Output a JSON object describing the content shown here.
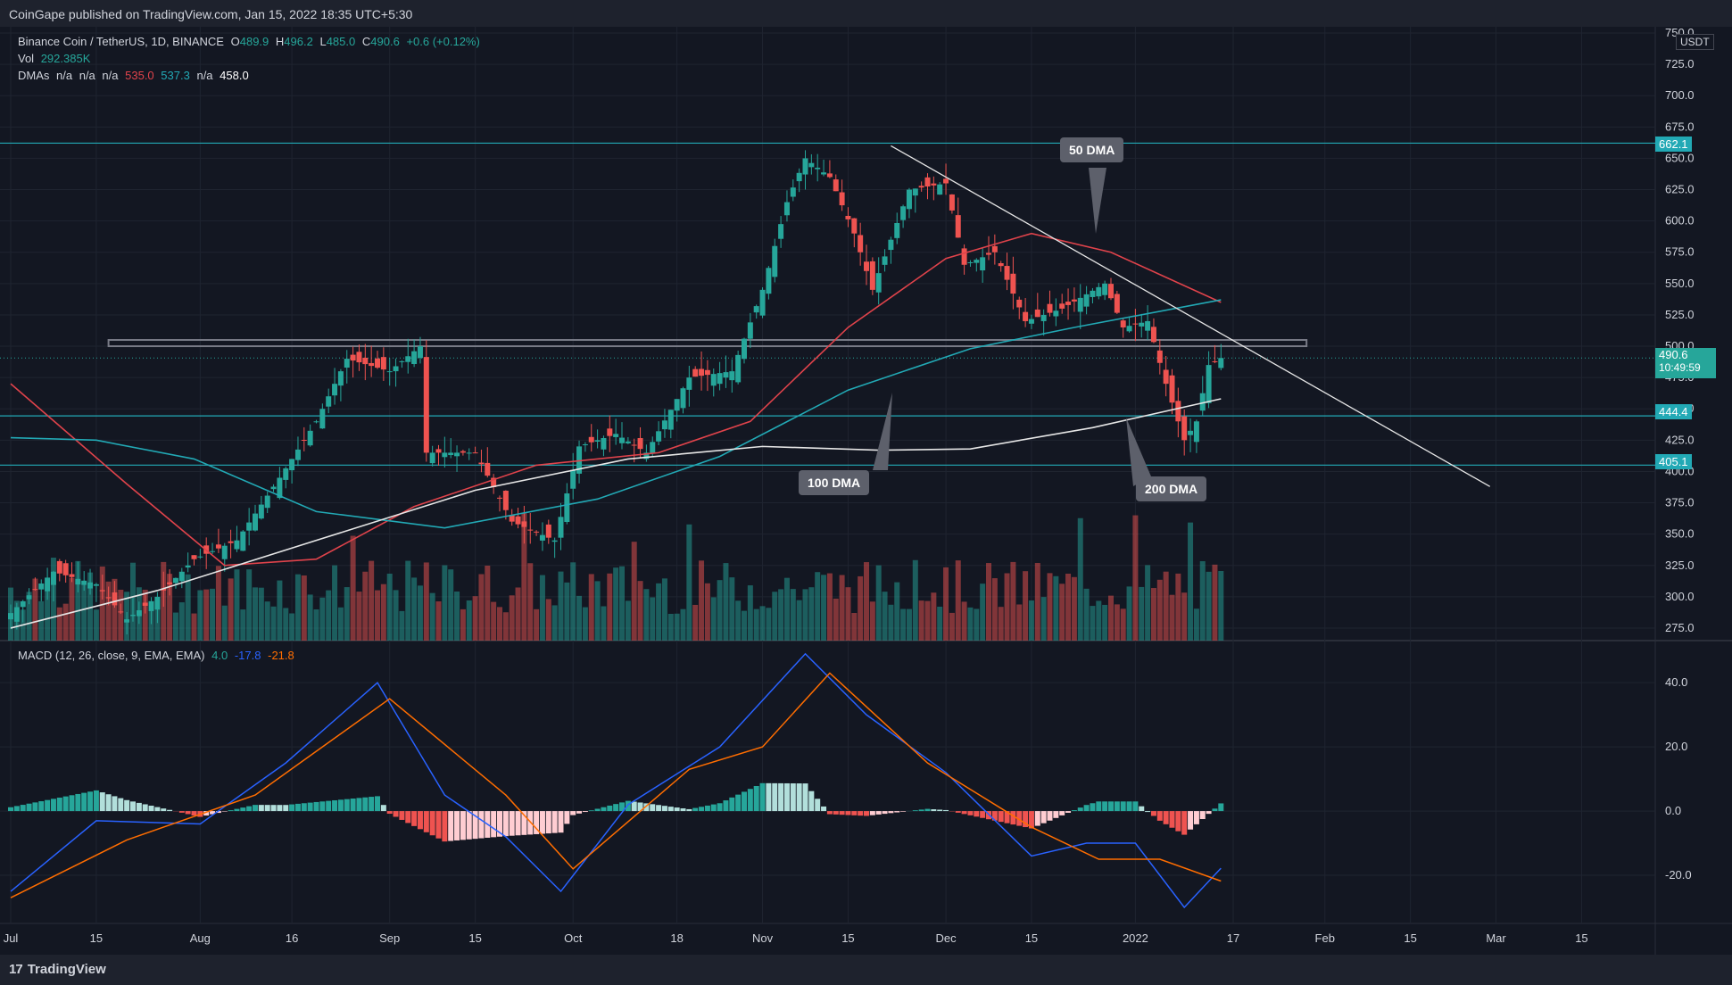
{
  "header": {
    "published": "CoinGape published on TradingView.com, Jan 15, 2022 18:35 UTC+5:30"
  },
  "legend": {
    "symbol": "Binance Coin / TetherUS, 1D, BINANCE",
    "o_label": "O",
    "o": "489.9",
    "h_label": "H",
    "h": "496.2",
    "l_label": "L",
    "l": "485.0",
    "c_label": "C",
    "c": "490.6",
    "change": "+0.6 (+0.12%)",
    "vol_label": "Vol",
    "vol": "292.385K",
    "dma_label": "DMAs",
    "dma_na1": "n/a",
    "dma_na2": "n/a",
    "dma_na3": "n/a",
    "dma_50": "535.0",
    "dma_100": "537.3",
    "dma_na4": "n/a",
    "dma_200": "458.0"
  },
  "macd_legend": {
    "label": "MACD (12, 26, close, 9, EMA, EMA)",
    "hist": "4.0",
    "macd": "-17.8",
    "signal": "-21.8"
  },
  "currency": "USDT",
  "price_axis": [
    "750.0",
    "725.0",
    "700.0",
    "675.0",
    "650.0",
    "625.0",
    "600.0",
    "575.0",
    "550.0",
    "525.0",
    "500.0",
    "475.0",
    "450.0",
    "425.0",
    "400.0",
    "375.0",
    "350.0",
    "325.0",
    "300.0",
    "275.0"
  ],
  "price_badges": {
    "resistance": "662.1",
    "current": "490.6",
    "countdown": "10:49:59",
    "support1": "444.4",
    "support2": "405.1"
  },
  "macd_axis": [
    "40.0",
    "20.0",
    "0.0",
    "-20.0"
  ],
  "time_axis": [
    "Jul",
    "15",
    "Aug",
    "16",
    "Sep",
    "15",
    "Oct",
    "18",
    "Nov",
    "15",
    "Dec",
    "15",
    "2022",
    "17",
    "Feb",
    "15",
    "Mar",
    "15"
  ],
  "callouts": {
    "dma50": "50 DMA",
    "dma100": "100 DMA",
    "dma200": "200 DMA"
  },
  "footer": {
    "brand": "TradingView",
    "mark": "17"
  },
  "colors": {
    "bg": "#131722",
    "up": "#26a69a",
    "down": "#ef5350",
    "dma50": "#e0434b",
    "dma100": "#22a9b5",
    "dma200": "#e6e6e6",
    "hline": "#22a9b5",
    "macd": "#2962ff",
    "signal": "#ff6d00"
  },
  "chart_data": {
    "type": "candlestick",
    "symbol": "BNB/USDT",
    "interval": "1D",
    "x_range": [
      "2021-07-01",
      "2022-03-15"
    ],
    "ylim": [
      265,
      755
    ],
    "horizontal_levels": [
      662.1,
      444.4,
      405.1
    ],
    "resistance_zone": [
      500,
      505
    ],
    "trendline": [
      {
        "x": "2021-11-22",
        "y": 660
      },
      {
        "x": "2022-02-28",
        "y": 388
      }
    ],
    "ohlc_close_path": [
      {
        "x": "2021-07-01",
        "y": 287
      },
      {
        "x": "2021-07-08",
        "y": 320
      },
      {
        "x": "2021-07-15",
        "y": 310
      },
      {
        "x": "2021-07-20",
        "y": 282
      },
      {
        "x": "2021-07-25",
        "y": 300
      },
      {
        "x": "2021-07-31",
        "y": 330
      },
      {
        "x": "2021-08-07",
        "y": 345
      },
      {
        "x": "2021-08-14",
        "y": 395
      },
      {
        "x": "2021-08-20",
        "y": 440
      },
      {
        "x": "2021-08-25",
        "y": 490
      },
      {
        "x": "2021-09-01",
        "y": 480
      },
      {
        "x": "2021-09-06",
        "y": 500
      },
      {
        "x": "2021-09-07",
        "y": 415
      },
      {
        "x": "2021-09-15",
        "y": 415
      },
      {
        "x": "2021-09-21",
        "y": 360
      },
      {
        "x": "2021-09-28",
        "y": 345
      },
      {
        "x": "2021-10-02",
        "y": 420
      },
      {
        "x": "2021-10-08",
        "y": 430
      },
      {
        "x": "2021-10-13",
        "y": 415
      },
      {
        "x": "2021-10-20",
        "y": 475
      },
      {
        "x": "2021-10-27",
        "y": 480
      },
      {
        "x": "2021-11-01",
        "y": 545
      },
      {
        "x": "2021-11-05",
        "y": 615
      },
      {
        "x": "2021-11-08",
        "y": 650
      },
      {
        "x": "2021-11-12",
        "y": 635
      },
      {
        "x": "2021-11-16",
        "y": 590
      },
      {
        "x": "2021-11-19",
        "y": 545
      },
      {
        "x": "2021-11-25",
        "y": 625
      },
      {
        "x": "2021-12-01",
        "y": 630
      },
      {
        "x": "2021-12-04",
        "y": 565
      },
      {
        "x": "2021-12-09",
        "y": 575
      },
      {
        "x": "2021-12-14",
        "y": 520
      },
      {
        "x": "2021-12-20",
        "y": 530
      },
      {
        "x": "2021-12-27",
        "y": 550
      },
      {
        "x": "2021-12-30",
        "y": 515
      },
      {
        "x": "2022-01-03",
        "y": 520
      },
      {
        "x": "2022-01-06",
        "y": 470
      },
      {
        "x": "2022-01-09",
        "y": 425
      },
      {
        "x": "2022-01-11",
        "y": 440
      },
      {
        "x": "2022-01-13",
        "y": 485
      },
      {
        "x": "2022-01-15",
        "y": 490.6
      }
    ],
    "series": [
      {
        "name": "DMA 50",
        "points": [
          {
            "x": "2021-07-01",
            "y": 470
          },
          {
            "x": "2021-07-20",
            "y": 390
          },
          {
            "x": "2021-08-05",
            "y": 325
          },
          {
            "x": "2021-08-20",
            "y": 330
          },
          {
            "x": "2021-09-05",
            "y": 372
          },
          {
            "x": "2021-09-25",
            "y": 405
          },
          {
            "x": "2021-10-15",
            "y": 415
          },
          {
            "x": "2021-10-30",
            "y": 440
          },
          {
            "x": "2021-11-15",
            "y": 515
          },
          {
            "x": "2021-12-01",
            "y": 570
          },
          {
            "x": "2021-12-15",
            "y": 590
          },
          {
            "x": "2021-12-28",
            "y": 575
          },
          {
            "x": "2022-01-15",
            "y": 535
          }
        ]
      },
      {
        "name": "DMA 100",
        "points": [
          {
            "x": "2021-07-01",
            "y": 427
          },
          {
            "x": "2021-07-15",
            "y": 425
          },
          {
            "x": "2021-07-31",
            "y": 410
          },
          {
            "x": "2021-08-20",
            "y": 368
          },
          {
            "x": "2021-09-10",
            "y": 355
          },
          {
            "x": "2021-10-05",
            "y": 378
          },
          {
            "x": "2021-10-25",
            "y": 412
          },
          {
            "x": "2021-11-15",
            "y": 465
          },
          {
            "x": "2021-12-05",
            "y": 498
          },
          {
            "x": "2021-12-22",
            "y": 515
          },
          {
            "x": "2022-01-15",
            "y": 537
          }
        ]
      },
      {
        "name": "DMA 200",
        "points": [
          {
            "x": "2021-07-01",
            "y": 275
          },
          {
            "x": "2021-07-25",
            "y": 305
          },
          {
            "x": "2021-08-20",
            "y": 345
          },
          {
            "x": "2021-09-15",
            "y": 385
          },
          {
            "x": "2021-10-10",
            "y": 410
          },
          {
            "x": "2021-11-01",
            "y": 420
          },
          {
            "x": "2021-11-20",
            "y": 417
          },
          {
            "x": "2021-12-05",
            "y": 418
          },
          {
            "x": "2021-12-25",
            "y": 435
          },
          {
            "x": "2022-01-15",
            "y": 458
          }
        ]
      }
    ],
    "macd": {
      "ylim": [
        -35,
        52
      ],
      "macd_line": [
        {
          "x": "2021-07-01",
          "y": -25
        },
        {
          "x": "2021-07-15",
          "y": -3
        },
        {
          "x": "2021-08-01",
          "y": -4
        },
        {
          "x": "2021-08-15",
          "y": 15
        },
        {
          "x": "2021-08-30",
          "y": 40
        },
        {
          "x": "2021-09-10",
          "y": 5
        },
        {
          "x": "2021-09-20",
          "y": -8
        },
        {
          "x": "2021-09-29",
          "y": -25
        },
        {
          "x": "2021-10-10",
          "y": 2
        },
        {
          "x": "2021-10-25",
          "y": 20
        },
        {
          "x": "2021-11-08",
          "y": 49
        },
        {
          "x": "2021-11-18",
          "y": 30
        },
        {
          "x": "2021-12-01",
          "y": 12
        },
        {
          "x": "2021-12-15",
          "y": -14
        },
        {
          "x": "2021-12-24",
          "y": -10
        },
        {
          "x": "2022-01-01",
          "y": -10
        },
        {
          "x": "2022-01-09",
          "y": -30
        },
        {
          "x": "2022-01-15",
          "y": -17.8
        }
      ],
      "signal_line": [
        {
          "x": "2021-07-01",
          "y": -27
        },
        {
          "x": "2021-07-20",
          "y": -9
        },
        {
          "x": "2021-08-10",
          "y": 5
        },
        {
          "x": "2021-09-01",
          "y": 35
        },
        {
          "x": "2021-09-20",
          "y": 5
        },
        {
          "x": "2021-10-01",
          "y": -18
        },
        {
          "x": "2021-10-20",
          "y": 13
        },
        {
          "x": "2021-11-01",
          "y": 20
        },
        {
          "x": "2021-11-12",
          "y": 43
        },
        {
          "x": "2021-11-28",
          "y": 15
        },
        {
          "x": "2021-12-15",
          "y": -5
        },
        {
          "x": "2021-12-26",
          "y": -15
        },
        {
          "x": "2022-01-05",
          "y": -15
        },
        {
          "x": "2022-01-15",
          "y": -21.8
        }
      ],
      "histogram_last": 4.0
    }
  }
}
